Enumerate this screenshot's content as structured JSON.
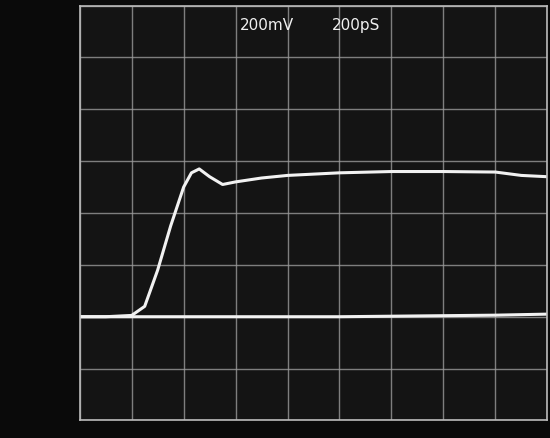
{
  "chart_data": {
    "type": "line",
    "annotations": [
      "200mV",
      "200pS"
    ],
    "x": [
      0,
      100,
      200,
      250,
      300,
      350,
      400,
      430,
      460,
      500,
      550,
      600,
      700,
      800,
      1000,
      1200,
      1400,
      1600,
      1700,
      1800
    ],
    "series": [
      {
        "color": "#f2f2f2",
        "values": [
          0,
          0,
          5,
          40,
          180,
          350,
          500,
          555,
          570,
          540,
          510,
          520,
          535,
          545,
          555,
          560,
          560,
          558,
          545,
          540
        ]
      },
      {
        "color": "#f2f2f2",
        "values": [
          0,
          0,
          0,
          0,
          0,
          0,
          0,
          0,
          0,
          0,
          0,
          0,
          0,
          0,
          0,
          2,
          4,
          6,
          8,
          10
        ]
      }
    ],
    "xlim": [
      0,
      1800
    ],
    "xticks": [
      0,
      200,
      400,
      600,
      800,
      1000,
      1200,
      1400,
      1600,
      1800
    ],
    "ylim": [
      -400,
      1200
    ],
    "yticks": [
      -400,
      -200,
      0,
      200,
      400,
      600,
      800,
      1000,
      1200
    ],
    "grid": true,
    "tick_labels": false
  }
}
